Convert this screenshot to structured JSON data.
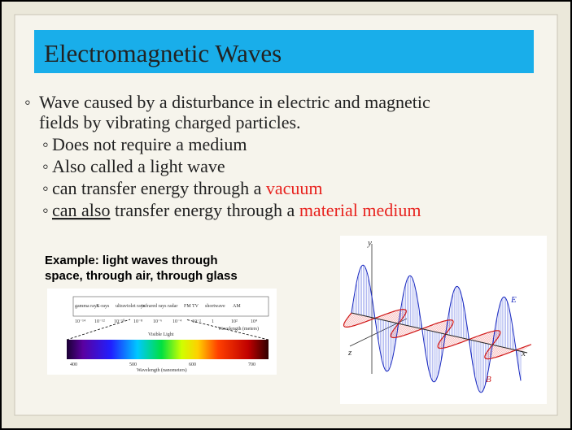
{
  "slide": {
    "title": "Electromagnetic Waves",
    "bullets": [
      {
        "lines": [
          "Wave caused by a disturbance in electric and magnetic",
          "fields by vibrating charged particles."
        ]
      },
      {
        "text": "Does not require a medium"
      },
      {
        "text": "Also called a light wave"
      },
      {
        "parts": [
          "can transfer energy through a ",
          "vacuum"
        ]
      },
      {
        "parts": [
          "can also",
          " transfer energy through a ",
          "material medium"
        ]
      }
    ],
    "example": [
      "Example: light waves through",
      "space, through air, through glass"
    ],
    "spectrum": {
      "bands": [
        "gamma rays",
        "X-rays",
        "ultraviolet rays",
        "infrared rays",
        "radar",
        "FM",
        "TV",
        "shortwave",
        "AM"
      ],
      "meter_ticks": [
        "10⁻¹⁴",
        "10⁻¹²",
        "10⁻¹⁰",
        "10⁻⁸",
        "10⁻⁶",
        "10⁻⁴",
        "10⁻²",
        "1",
        "10²",
        "10⁴"
      ],
      "meter_label": "Wavelength (meters)",
      "visible_label": "Visible Light",
      "nm_ticks": [
        "400",
        "500",
        "600",
        "700"
      ],
      "nm_label": "Wavelength (nanometers)"
    },
    "wave_axes": {
      "y": "y",
      "z": "z",
      "x": "x",
      "e": "E",
      "b": "B"
    }
  }
}
